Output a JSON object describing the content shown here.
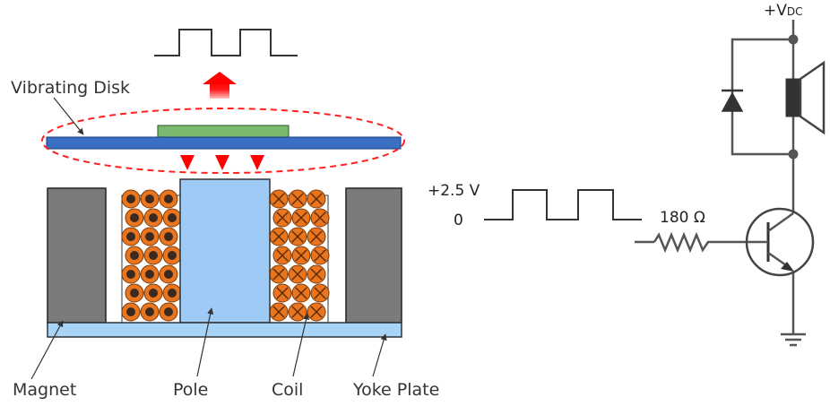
{
  "labels": {
    "vibrating_disk": "Vibrating Disk",
    "magnet": "Magnet",
    "pole": "Pole",
    "coil": "Coil",
    "yoke_plate": "Yoke Plate"
  },
  "circuit": {
    "supply": "+V",
    "supply_sub": "DC",
    "input_high": "+2.5 V",
    "input_low": "0",
    "resistor": "180 Ω"
  },
  "colors": {
    "disk": "#3b6fc4",
    "disk_top": "#7aba6e",
    "magnet": "#7b7b7b",
    "pole": "#9ecbf5",
    "yoke": "#a8d4f7",
    "coil": "#e9761f",
    "arrow": "#ff0000",
    "dashed": "#ff0000"
  },
  "icons": [
    "red-up-arrow",
    "red-down-arrow",
    "coil-dot-symbol",
    "coil-cross-symbol",
    "diode-symbol",
    "speaker-symbol",
    "npn-transistor-symbol",
    "ground-symbol",
    "resistor-symbol"
  ]
}
